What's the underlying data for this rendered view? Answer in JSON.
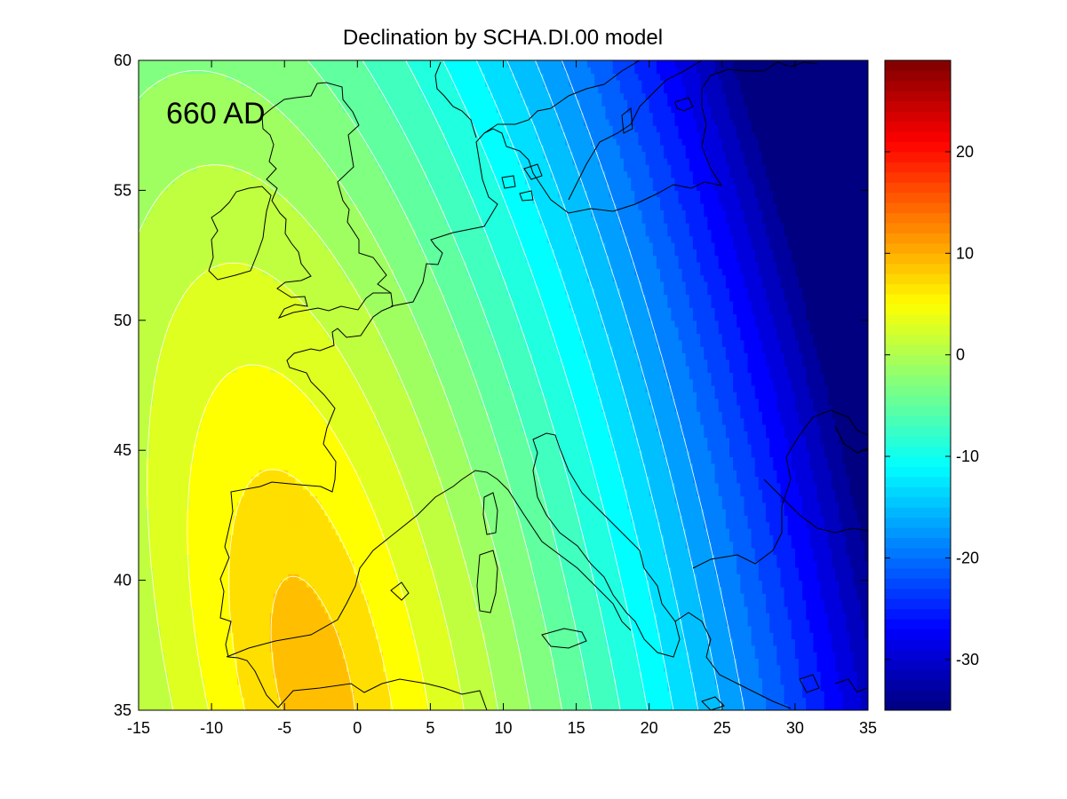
{
  "chart_data": {
    "type": "heatmap",
    "title": "Declination by SCHA.DI.00 model",
    "annotation": "660 AD",
    "xlabel": "",
    "ylabel": "",
    "xlim": [
      -15,
      35
    ],
    "ylim": [
      35,
      60
    ],
    "x_ticks": [
      -15,
      -10,
      -5,
      0,
      5,
      10,
      15,
      20,
      25,
      30,
      35
    ],
    "y_ticks": [
      35,
      40,
      45,
      50,
      55,
      60
    ],
    "x_tick_labels": [
      "-15",
      "-10",
      "-5",
      "0",
      "5",
      "10",
      "15",
      "20",
      "25",
      "30",
      "35"
    ],
    "y_tick_labels": [
      "35",
      "40",
      "45",
      "50",
      "55",
      "60"
    ],
    "colorbar": {
      "range": [
        -35,
        29
      ],
      "ticks": [
        20,
        10,
        0,
        -10,
        -20,
        -30
      ],
      "tick_labels": [
        "20",
        "10",
        "0",
        "-10",
        "-20",
        "-30"
      ],
      "colormap": "jet"
    },
    "field": {
      "description_units": "degrees",
      "max_value": 10,
      "max_location": [
        -3,
        36
      ],
      "contour_interval": 2,
      "contour_levels": [
        8,
        6,
        4,
        2,
        0,
        -2,
        -4,
        -6,
        -8,
        -10,
        -12,
        -14,
        -16,
        -18
      ]
    },
    "grid": false,
    "legend": "none"
  }
}
